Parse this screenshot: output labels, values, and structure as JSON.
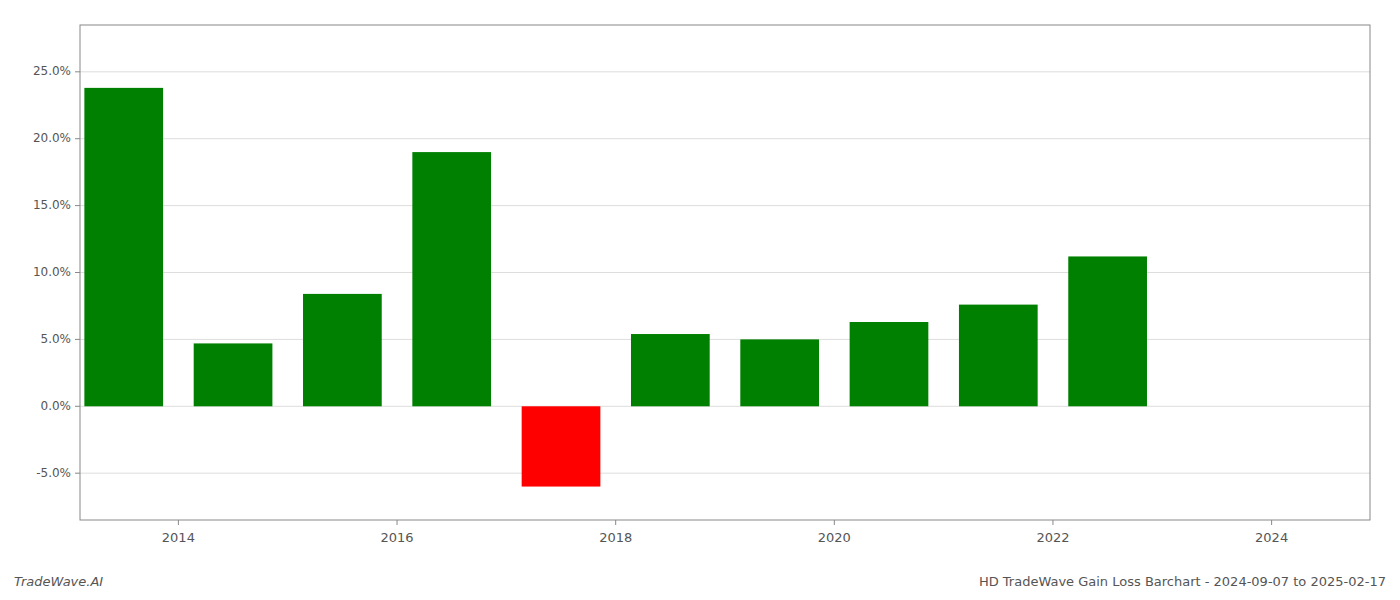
{
  "chart_data": {
    "type": "bar",
    "title": "HD TradeWave Gain Loss Barchart - 2024-09-07 to 2025-02-17",
    "annotations": [
      "TradeWave.AI"
    ],
    "x": [
      2013,
      2014,
      2015,
      2016,
      2017,
      2018,
      2019,
      2020,
      2021,
      2022,
      2023
    ],
    "values": [
      0.238,
      0.047,
      0.084,
      0.19,
      -0.06,
      0.054,
      0.05,
      0.063,
      0.076,
      0.112,
      0.0
    ],
    "colors": [
      "#008000",
      "#008000",
      "#008000",
      "#008000",
      "#ff0000",
      "#008000",
      "#008000",
      "#008000",
      "#008000",
      "#008000",
      "#008000"
    ],
    "xlim": [
      2012.6,
      2024.4
    ],
    "xticks": [
      {
        "value": 2013.5,
        "label": "2014"
      },
      {
        "value": 2015.5,
        "label": "2016"
      },
      {
        "value": 2017.5,
        "label": "2018"
      },
      {
        "value": 2019.5,
        "label": "2020"
      },
      {
        "value": 2021.5,
        "label": "2022"
      },
      {
        "value": 2023.5,
        "label": "2024"
      }
    ],
    "ylim": [
      -0.085,
      0.285
    ],
    "yticks": [
      {
        "value": -0.05,
        "label": "-5.0%"
      },
      {
        "value": 0.0,
        "label": "0.0%"
      },
      {
        "value": 0.05,
        "label": "5.0%"
      },
      {
        "value": 0.1,
        "label": "10.0%"
      },
      {
        "value": 0.15,
        "label": "15.0%"
      },
      {
        "value": 0.2,
        "label": "20.0%"
      },
      {
        "value": 0.25,
        "label": "25.0%"
      }
    ],
    "grid": true
  }
}
